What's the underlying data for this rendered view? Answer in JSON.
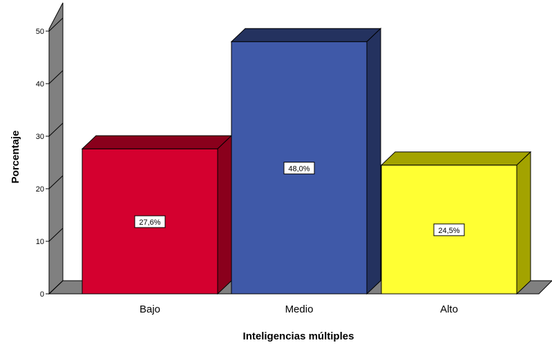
{
  "chart_data": {
    "type": "bar",
    "title": "",
    "xlabel": "Inteligencias múltiples",
    "ylabel": "Porcentaje",
    "categories": [
      "Bajo",
      "Medio",
      "Alto"
    ],
    "values": [
      27.6,
      48.0,
      24.5
    ],
    "data_labels": [
      "27,6%",
      "48,0%",
      "24,5%"
    ],
    "colors": [
      "#d4002f",
      "#3f59a8",
      "#ffff33"
    ],
    "side_colors": [
      "#8a001c",
      "#24325f",
      "#a3a300"
    ],
    "top_colors": [
      "#8a001c",
      "#24325f",
      "#a3a300"
    ],
    "ylim": [
      0,
      50
    ],
    "yticks": [
      0,
      10,
      20,
      30,
      40,
      50
    ],
    "grid": false,
    "style": "3d-bar",
    "wall_color": "#808080"
  }
}
